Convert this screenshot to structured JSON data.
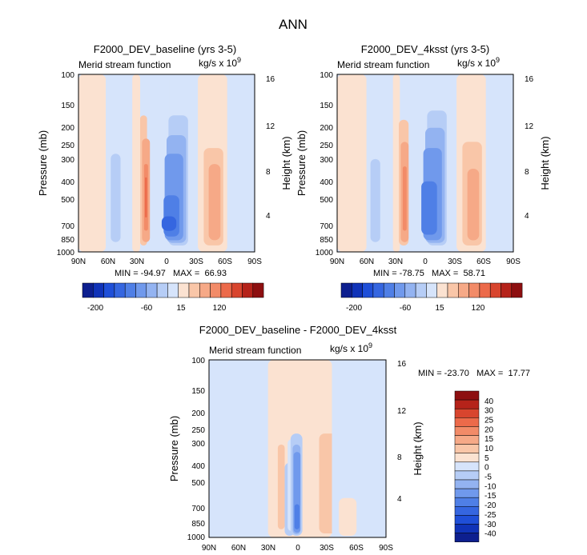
{
  "figure_title": "ANN",
  "colors": {
    "levels": [
      "#0d1f8f",
      "#1033b8",
      "#1f4fd8",
      "#3566e0",
      "#4f7fe6",
      "#7099ec",
      "#93b3f1",
      "#b6cdf6",
      "#d6e4fb",
      "#fbe2d1",
      "#f9c6a8",
      "#f6a987",
      "#f28b68",
      "#ec6a4a",
      "#d8452e",
      "#b5231a",
      "#8d0f10"
    ]
  },
  "chart_data": [
    {
      "type": "heatmap",
      "title": "F2000_DEV_baseline (yrs 3-5)",
      "subtitle": "Merid stream function",
      "units_prefix": "kg/s x 10",
      "units_exp": "9",
      "xlabel": "",
      "ylabel": "Pressure (mb)",
      "ylabel_right": "Height (km)",
      "x_ticks": [
        "90N",
        "60N",
        "30N",
        "0",
        "30S",
        "60S",
        "90S"
      ],
      "x_range": [
        90,
        -90
      ],
      "y_ticks": [
        "100",
        "150",
        "200",
        "250",
        "300",
        "400",
        "500",
        "700",
        "850",
        "1000"
      ],
      "y_range": [
        100,
        1000
      ],
      "right_ticks": [
        "16",
        "12",
        "8",
        "4"
      ],
      "stats": "MIN = -94.97   MAX =  66.93",
      "colorbar_labels": [
        "-200",
        "-60",
        "15",
        "120"
      ],
      "cells": [
        {
          "lat": [
            90,
            62
          ],
          "p": [
            100,
            1000
          ],
          "level": 9
        },
        {
          "lat": [
            62,
            35
          ],
          "p": [
            100,
            1000
          ],
          "level": 8
        },
        {
          "lat": [
            57,
            47
          ],
          "p": [
            280,
            880
          ],
          "level": 7
        },
        {
          "lat": [
            35,
            27
          ],
          "p": [
            100,
            1000
          ],
          "level": 9
        },
        {
          "lat": [
            27,
            20
          ],
          "p": [
            170,
            920
          ],
          "level": 10
        },
        {
          "lat": [
            25,
            17
          ],
          "p": [
            230,
            880
          ],
          "level": 11
        },
        {
          "lat": [
            23,
            19
          ],
          "p": [
            320,
            760
          ],
          "level": 12
        },
        {
          "lat": [
            22,
            20
          ],
          "p": [
            380,
            640
          ],
          "level": 13
        },
        {
          "lat": [
            -3,
            -45
          ],
          "p": [
            100,
            1000
          ],
          "level": 8
        },
        {
          "lat": [
            -2,
            -22
          ],
          "p": [
            170,
            920
          ],
          "level": 7
        },
        {
          "lat": [
            0,
            -20
          ],
          "p": [
            220,
            890
          ],
          "level": 6
        },
        {
          "lat": [
            2,
            -17
          ],
          "p": [
            280,
            860
          ],
          "level": 5
        },
        {
          "lat": [
            3,
            -13
          ],
          "p": [
            480,
            820
          ],
          "level": 4
        },
        {
          "lat": [
            5,
            -10
          ],
          "p": [
            630,
            760
          ],
          "level": 3
        },
        {
          "lat": [
            -32,
            -62
          ],
          "p": [
            100,
            1000
          ],
          "level": 9
        },
        {
          "lat": [
            -38,
            -58
          ],
          "p": [
            260,
            920
          ],
          "level": 10
        },
        {
          "lat": [
            -43,
            -55
          ],
          "p": [
            320,
            860
          ],
          "level": 11
        },
        {
          "lat": [
            -62,
            -90
          ],
          "p": [
            100,
            1000
          ],
          "level": 8
        }
      ]
    },
    {
      "type": "heatmap",
      "title": "F2000_DEV_4ksst (yrs 3-5)",
      "subtitle": "Merid stream function",
      "units_prefix": "kg/s x 10",
      "units_exp": "9",
      "xlabel": "",
      "ylabel": "Pressure (mb)",
      "ylabel_right": "Height (km)",
      "x_ticks": [
        "90N",
        "60N",
        "30N",
        "0",
        "30S",
        "60S",
        "90S"
      ],
      "x_range": [
        90,
        -90
      ],
      "y_ticks": [
        "100",
        "150",
        "200",
        "250",
        "300",
        "400",
        "500",
        "700",
        "850",
        "1000"
      ],
      "y_range": [
        100,
        1000
      ],
      "right_ticks": [
        "16",
        "12",
        "8",
        "4"
      ],
      "stats": "MIN = -78.75   MAX =  58.71",
      "colorbar_labels": [
        "-200",
        "-60",
        "15",
        "120"
      ],
      "cells": [
        {
          "lat": [
            90,
            60
          ],
          "p": [
            100,
            1000
          ],
          "level": 9
        },
        {
          "lat": [
            60,
            33
          ],
          "p": [
            100,
            1000
          ],
          "level": 8
        },
        {
          "lat": [
            56,
            46
          ],
          "p": [
            300,
            880
          ],
          "level": 7
        },
        {
          "lat": [
            33,
            26
          ],
          "p": [
            100,
            1000
          ],
          "level": 9
        },
        {
          "lat": [
            27,
            17
          ],
          "p": [
            180,
            920
          ],
          "level": 10
        },
        {
          "lat": [
            25,
            17
          ],
          "p": [
            240,
            880
          ],
          "level": 11
        },
        {
          "lat": [
            23,
            19
          ],
          "p": [
            330,
            760
          ],
          "level": 12
        },
        {
          "lat": [
            -3,
            -40
          ],
          "p": [
            100,
            1000
          ],
          "level": 8
        },
        {
          "lat": [
            -2,
            -22
          ],
          "p": [
            160,
            920
          ],
          "level": 7
        },
        {
          "lat": [
            0,
            -20
          ],
          "p": [
            200,
            890
          ],
          "level": 6
        },
        {
          "lat": [
            2,
            -17
          ],
          "p": [
            260,
            860
          ],
          "level": 5
        },
        {
          "lat": [
            4,
            -12
          ],
          "p": [
            400,
            800
          ],
          "level": 4
        },
        {
          "lat": [
            -32,
            -62
          ],
          "p": [
            100,
            1000
          ],
          "level": 9
        },
        {
          "lat": [
            -38,
            -58
          ],
          "p": [
            240,
            920
          ],
          "level": 10
        },
        {
          "lat": [
            -43,
            -55
          ],
          "p": [
            340,
            860
          ],
          "level": 11
        },
        {
          "lat": [
            -62,
            -90
          ],
          "p": [
            100,
            1000
          ],
          "level": 8
        }
      ]
    },
    {
      "type": "heatmap",
      "title": "F2000_DEV_baseline - F2000_DEV_4ksst",
      "subtitle": "Merid stream function",
      "units_prefix": "kg/s x 10",
      "units_exp": "9",
      "xlabel": "",
      "ylabel": "Pressure (mb)",
      "ylabel_right": "Height (km)",
      "x_ticks": [
        "90N",
        "60N",
        "30N",
        "0",
        "30S",
        "60S",
        "90S"
      ],
      "x_range": [
        90,
        -90
      ],
      "y_ticks": [
        "100",
        "150",
        "200",
        "250",
        "300",
        "400",
        "500",
        "700",
        "850",
        "1000"
      ],
      "y_range": [
        100,
        1000
      ],
      "right_ticks": [
        "16",
        "12",
        "8",
        "4"
      ],
      "stats": "MIN = -23.70   MAX =  17.77",
      "colorbar_labels": [
        "40",
        "30",
        "25",
        "20",
        "15",
        "10",
        "5",
        "0",
        "-5",
        "-10",
        "-15",
        "-20",
        "-25",
        "-30",
        "-40"
      ],
      "cells": [
        {
          "lat": [
            90,
            30
          ],
          "p": [
            100,
            1000
          ],
          "level": 8
        },
        {
          "lat": [
            30,
            -35
          ],
          "p": [
            100,
            1000
          ],
          "level": 9
        },
        {
          "lat": [
            13,
            3
          ],
          "p": [
            380,
            980
          ],
          "level": 7
        },
        {
          "lat": [
            10,
            2
          ],
          "p": [
            280,
            920
          ],
          "level": 8
        },
        {
          "lat": [
            20,
            13
          ],
          "p": [
            300,
            900
          ],
          "level": 10
        },
        {
          "lat": [
            7,
            -5
          ],
          "p": [
            260,
            980
          ],
          "level": 7
        },
        {
          "lat": [
            5,
            -3
          ],
          "p": [
            300,
            960
          ],
          "level": 6
        },
        {
          "lat": [
            4,
            -3
          ],
          "p": [
            330,
            940
          ],
          "level": 5
        },
        {
          "lat": [
            3,
            -2
          ],
          "p": [
            650,
            900
          ],
          "level": 4
        },
        {
          "lat": [
            -22,
            -42
          ],
          "p": [
            260,
            950
          ],
          "level": 10
        },
        {
          "lat": [
            -35,
            -90
          ],
          "p": [
            100,
            1000
          ],
          "level": 8
        },
        {
          "lat": [
            -42,
            -60
          ],
          "p": [
            600,
            980
          ],
          "level": 9
        }
      ]
    }
  ]
}
